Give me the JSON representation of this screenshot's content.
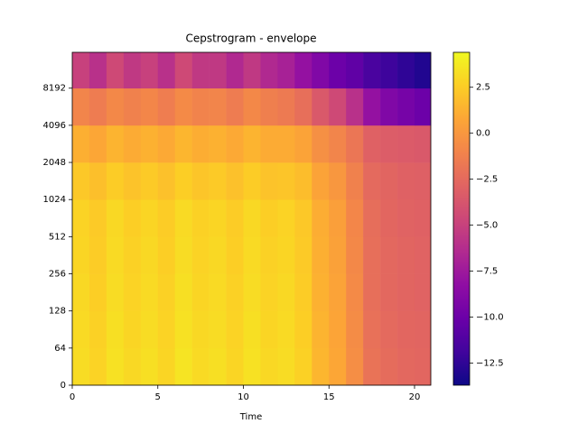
{
  "chart_data": {
    "type": "heatmap",
    "title": "Cepstrogram - envelope",
    "xlabel": "Time",
    "x_edges": [
      0,
      1,
      2,
      3,
      4,
      5,
      6,
      7,
      8,
      9,
      10,
      11,
      12,
      13,
      14,
      15,
      16,
      17,
      18,
      19,
      20,
      20.95
    ],
    "y_edges": [
      0,
      64,
      128,
      256,
      512,
      1024,
      2048,
      4096,
      8192,
      16000
    ],
    "z": [
      [
        3.2,
        2.8,
        3.4,
        3.0,
        3.3,
        2.9,
        3.5,
        3.1,
        3.3,
        2.9,
        3.4,
        3.0,
        3.2,
        2.7,
        1.5,
        0.8,
        -0.5,
        -2.0,
        -2.4,
        -2.6,
        -2.7
      ],
      [
        3.1,
        2.7,
        3.3,
        2.9,
        3.2,
        2.8,
        3.4,
        3.0,
        3.2,
        2.8,
        3.3,
        2.9,
        3.1,
        2.6,
        1.4,
        0.7,
        -0.6,
        -2.1,
        -2.5,
        -2.7,
        -2.8
      ],
      [
        3.0,
        2.6,
        3.2,
        2.8,
        3.1,
        2.7,
        3.3,
        2.9,
        3.1,
        2.7,
        3.2,
        2.8,
        3.0,
        2.5,
        1.3,
        0.6,
        -0.7,
        -2.2,
        -2.6,
        -2.8,
        -2.9
      ],
      [
        2.9,
        2.5,
        3.1,
        2.7,
        3.0,
        2.6,
        3.2,
        2.8,
        3.0,
        2.6,
        3.1,
        2.7,
        2.9,
        2.4,
        1.2,
        0.5,
        -0.8,
        -2.2,
        -2.6,
        -2.8,
        -2.9
      ],
      [
        2.8,
        2.4,
        3.0,
        2.6,
        2.9,
        2.5,
        3.1,
        2.7,
        2.9,
        2.5,
        3.0,
        2.6,
        2.8,
        2.3,
        1.1,
        0.4,
        -0.9,
        -2.3,
        -2.7,
        -2.9,
        -3.0
      ],
      [
        2.3,
        1.9,
        2.5,
        2.1,
        2.4,
        2.0,
        2.6,
        2.2,
        2.4,
        2.0,
        2.5,
        2.1,
        2.2,
        1.8,
        0.6,
        0.0,
        -1.2,
        -2.5,
        -2.8,
        -3.0,
        -3.1
      ],
      [
        1.2,
        0.8,
        1.4,
        1.0,
        1.3,
        0.9,
        1.5,
        1.1,
        1.3,
        0.9,
        1.4,
        1.0,
        1.0,
        0.6,
        -0.4,
        -1.0,
        -1.8,
        -3.0,
        -3.3,
        -3.4,
        -3.5
      ],
      [
        -1.0,
        -1.5,
        -0.8,
        -1.2,
        -0.9,
        -1.4,
        -0.7,
        -1.1,
        -1.0,
        -1.5,
        -0.8,
        -1.3,
        -1.6,
        -2.2,
        -3.5,
        -4.5,
        -6.0,
        -8.0,
        -9.0,
        -9.5,
        -10.0
      ],
      [
        -5.0,
        -6.0,
        -4.5,
        -5.5,
        -5.0,
        -6.0,
        -4.5,
        -5.5,
        -5.5,
        -6.5,
        -5.5,
        -6.5,
        -7.0,
        -8.0,
        -9.0,
        -10.0,
        -10.5,
        -11.5,
        -12.0,
        -12.5,
        -13.0
      ]
    ],
    "xlim": [
      0,
      20.95
    ],
    "xticks": [
      0,
      5,
      10,
      15,
      20
    ],
    "ylim": [
      0,
      16000
    ],
    "yscale": "symlog",
    "linthresh": 64,
    "yticks": [
      0,
      64,
      128,
      256,
      512,
      1024,
      2048,
      4096,
      8192
    ],
    "cmap": "plasma",
    "clim": [
      -13.7,
      4.4
    ],
    "cticks": [
      {
        "value": 2.5,
        "label": "2.5"
      },
      {
        "value": 0,
        "label": "0.0"
      },
      {
        "value": -2.5,
        "label": "−2.5"
      },
      {
        "value": -5,
        "label": "−5.0"
      },
      {
        "value": -7.5,
        "label": "−7.5"
      },
      {
        "value": -10,
        "label": "−10.0"
      },
      {
        "value": -12.5,
        "label": "−12.5"
      }
    ]
  }
}
